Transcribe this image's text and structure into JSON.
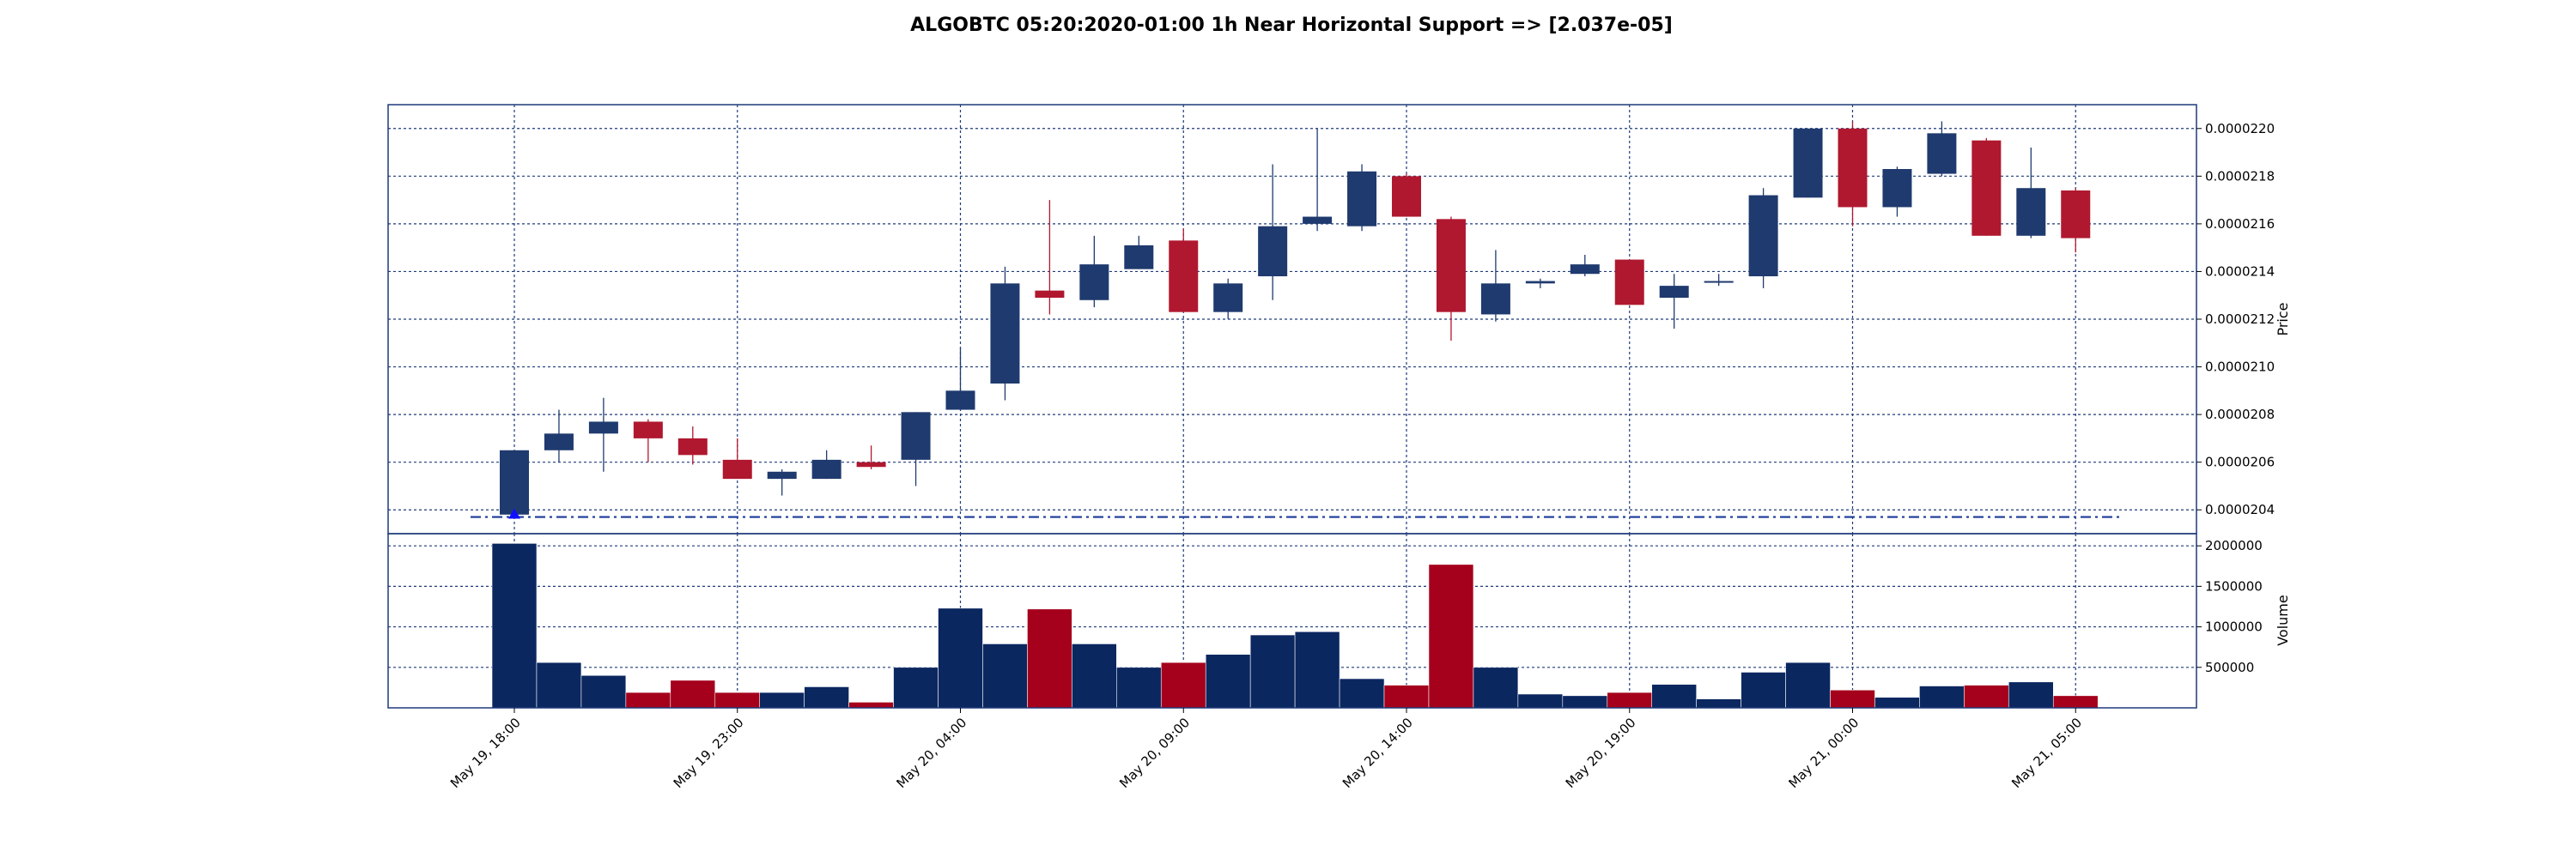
{
  "chart_data": {
    "title": "ALGOBTC 05:20:2020-01:00 1h Near Horizontal Support => [2.037e-05]",
    "type": "candlestick",
    "grid": true,
    "colors": {
      "up_body": "#1f3a6e",
      "down_body": "#b0182f",
      "volume_up": "#0b2760",
      "volume_down": "#a5001c",
      "grid": "#1f3a7a",
      "support_line": "#1a3a9a",
      "marker": "#1010ff"
    },
    "price_panel": {
      "ylabel": "Price",
      "ylim": [
        2.03e-05,
        2.21e-05
      ],
      "yticks": [
        2.04e-05,
        2.06e-05,
        2.08e-05,
        2.1e-05,
        2.12e-05,
        2.14e-05,
        2.16e-05,
        2.18e-05,
        2.2e-05
      ],
      "ytick_labels": [
        "0.0000204",
        "0.0000206",
        "0.0000208",
        "0.0000210",
        "0.0000212",
        "0.0000214",
        "0.0000216",
        "0.0000218",
        "0.0000220"
      ]
    },
    "volume_panel": {
      "ylabel": "Volume",
      "ylim": [
        0,
        2150000
      ],
      "yticks": [
        500000,
        1000000,
        1500000,
        2000000
      ],
      "ytick_labels": [
        "500000",
        "1000000",
        "1500000",
        "2000000"
      ]
    },
    "xtick_indices": [
      0,
      5,
      10,
      15,
      20,
      25,
      30,
      35
    ],
    "xtick_labels": [
      "May 19, 18:00",
      "May 19, 23:00",
      "May 20, 04:00",
      "May 20, 09:00",
      "May 20, 14:00",
      "May 20, 19:00",
      "May 21, 00:00",
      "May 21, 05:00"
    ],
    "support_level": 2.037e-05,
    "support_marker_index": 0,
    "candles": [
      {
        "o": 2.038e-05,
        "h": 2.065e-05,
        "l": 2.037e-05,
        "c": 2.065e-05,
        "v": 2030000
      },
      {
        "o": 2.065e-05,
        "h": 2.082e-05,
        "l": 2.06e-05,
        "c": 2.072e-05,
        "v": 560000
      },
      {
        "o": 2.072e-05,
        "h": 2.087e-05,
        "l": 2.056e-05,
        "c": 2.077e-05,
        "v": 400000
      },
      {
        "o": 2.077e-05,
        "h": 2.078e-05,
        "l": 2.06e-05,
        "c": 2.07e-05,
        "v": 190000
      },
      {
        "o": 2.07e-05,
        "h": 2.075e-05,
        "l": 2.059e-05,
        "c": 2.063e-05,
        "v": 340000
      },
      {
        "o": 2.061e-05,
        "h": 2.07e-05,
        "l": 2.053e-05,
        "c": 2.053e-05,
        "v": 190000
      },
      {
        "o": 2.053e-05,
        "h": 2.057e-05,
        "l": 2.046e-05,
        "c": 2.056e-05,
        "v": 190000
      },
      {
        "o": 2.053e-05,
        "h": 2.065e-05,
        "l": 2.053e-05,
        "c": 2.061e-05,
        "v": 260000
      },
      {
        "o": 2.06e-05,
        "h": 2.067e-05,
        "l": 2.057e-05,
        "c": 2.058e-05,
        "v": 70000
      },
      {
        "o": 2.061e-05,
        "h": 2.081e-05,
        "l": 2.05e-05,
        "c": 2.081e-05,
        "v": 500000
      },
      {
        "o": 2.082e-05,
        "h": 2.108e-05,
        "l": 2.082e-05,
        "c": 2.09e-05,
        "v": 1230000
      },
      {
        "o": 2.093e-05,
        "h": 2.142e-05,
        "l": 2.086e-05,
        "c": 2.135e-05,
        "v": 790000
      },
      {
        "o": 2.132e-05,
        "h": 2.17e-05,
        "l": 2.122e-05,
        "c": 2.129e-05,
        "v": 1220000
      },
      {
        "o": 2.128e-05,
        "h": 2.155e-05,
        "l": 2.125e-05,
        "c": 2.143e-05,
        "v": 790000
      },
      {
        "o": 2.141e-05,
        "h": 2.155e-05,
        "l": 2.141e-05,
        "c": 2.151e-05,
        "v": 500000
      },
      {
        "o": 2.153e-05,
        "h": 2.158e-05,
        "l": 2.123e-05,
        "c": 2.123e-05,
        "v": 560000
      },
      {
        "o": 2.123e-05,
        "h": 2.137e-05,
        "l": 2.12e-05,
        "c": 2.135e-05,
        "v": 660000
      },
      {
        "o": 2.138e-05,
        "h": 2.185e-05,
        "l": 2.128e-05,
        "c": 2.159e-05,
        "v": 900000
      },
      {
        "o": 2.16e-05,
        "h": 2.2e-05,
        "l": 2.157e-05,
        "c": 2.163e-05,
        "v": 940000
      },
      {
        "o": 2.159e-05,
        "h": 2.185e-05,
        "l": 2.157e-05,
        "c": 2.182e-05,
        "v": 360000
      },
      {
        "o": 2.18e-05,
        "h": 2.181e-05,
        "l": 2.163e-05,
        "c": 2.163e-05,
        "v": 280000
      },
      {
        "o": 2.162e-05,
        "h": 2.163e-05,
        "l": 2.111e-05,
        "c": 2.123e-05,
        "v": 1770000
      },
      {
        "o": 2.122e-05,
        "h": 2.149e-05,
        "l": 2.119e-05,
        "c": 2.135e-05,
        "v": 500000
      },
      {
        "o": 2.135e-05,
        "h": 2.137e-05,
        "l": 2.133e-05,
        "c": 2.136e-05,
        "v": 170000
      },
      {
        "o": 2.139e-05,
        "h": 2.147e-05,
        "l": 2.138e-05,
        "c": 2.143e-05,
        "v": 150000
      },
      {
        "o": 2.145e-05,
        "h": 2.145e-05,
        "l": 2.126e-05,
        "c": 2.126e-05,
        "v": 190000
      },
      {
        "o": 2.129e-05,
        "h": 2.139e-05,
        "l": 2.116e-05,
        "c": 2.134e-05,
        "v": 290000
      },
      {
        "o": 2.136e-05,
        "h": 2.139e-05,
        "l": 2.134e-05,
        "c": 2.136e-05,
        "v": 110000
      },
      {
        "o": 2.138e-05,
        "h": 2.175e-05,
        "l": 2.133e-05,
        "c": 2.172e-05,
        "v": 440000
      },
      {
        "o": 2.171e-05,
        "h": 2.2e-05,
        "l": 2.171e-05,
        "c": 2.2e-05,
        "v": 560000
      },
      {
        "o": 2.2e-05,
        "h": 2.203e-05,
        "l": 2.159e-05,
        "c": 2.167e-05,
        "v": 220000
      },
      {
        "o": 2.167e-05,
        "h": 2.184e-05,
        "l": 2.163e-05,
        "c": 2.183e-05,
        "v": 130000
      },
      {
        "o": 2.181e-05,
        "h": 2.203e-05,
        "l": 2.18e-05,
        "c": 2.198e-05,
        "v": 270000
      },
      {
        "o": 2.195e-05,
        "h": 2.196e-05,
        "l": 2.155e-05,
        "c": 2.155e-05,
        "v": 280000
      },
      {
        "o": 2.155e-05,
        "h": 2.192e-05,
        "l": 2.154e-05,
        "c": 2.175e-05,
        "v": 320000
      },
      {
        "o": 2.174e-05,
        "h": 2.175e-05,
        "l": 2.148e-05,
        "c": 2.154e-05,
        "v": 150000
      }
    ]
  }
}
